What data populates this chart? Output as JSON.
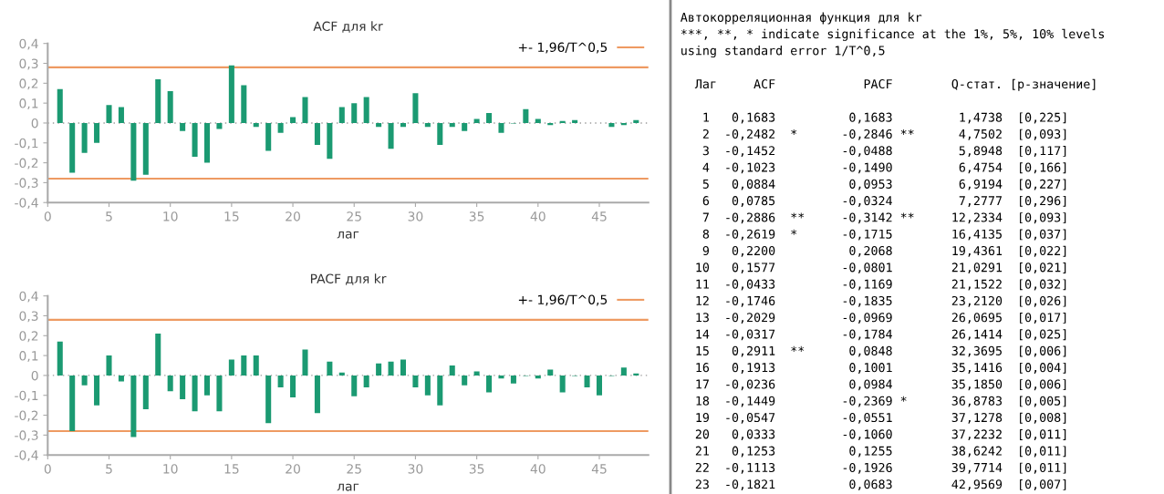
{
  "chart_data": [
    {
      "type": "bar",
      "title": "ACF для kr",
      "xlabel": "лаг",
      "color": "#1b9a72",
      "x": [
        1,
        2,
        3,
        4,
        5,
        6,
        7,
        8,
        9,
        10,
        11,
        12,
        13,
        14,
        15,
        16,
        17,
        18,
        19,
        20,
        21,
        22,
        23,
        24,
        25,
        26,
        27,
        28,
        29,
        30,
        31,
        32,
        33,
        34,
        35,
        36,
        37,
        38,
        39,
        40,
        41,
        42,
        43,
        44,
        45,
        46,
        47,
        48
      ],
      "values": [
        0.17,
        -0.25,
        -0.15,
        -0.1,
        0.09,
        0.08,
        -0.29,
        -0.26,
        0.22,
        0.16,
        -0.04,
        -0.17,
        -0.2,
        -0.03,
        0.29,
        0.19,
        -0.02,
        -0.14,
        -0.05,
        0.03,
        0.13,
        -0.11,
        -0.18,
        0.08,
        0.1,
        0.13,
        -0.02,
        -0.13,
        -0.02,
        0.15,
        -0.02,
        -0.11,
        -0.02,
        -0.04,
        0.02,
        0.05,
        -0.05,
        -0.003,
        0.07,
        0.02,
        -0.01,
        0.01,
        0.015,
        null,
        null,
        -0.02,
        -0.01,
        0.015
      ],
      "xlim": [
        0,
        49
      ],
      "xticks": [
        0,
        5,
        10,
        15,
        20,
        25,
        30,
        35,
        40,
        45
      ],
      "ylim": [
        -0.4,
        0.4
      ],
      "yticks": [
        {
          "value": -0.4,
          "label": "-0,4"
        },
        {
          "value": -0.3,
          "label": "-0,3"
        },
        {
          "value": -0.2,
          "label": "-0,2"
        },
        {
          "value": -0.1,
          "label": "-0,1"
        },
        0,
        {
          "value": 0.1,
          "label": "0,1"
        },
        {
          "value": 0.2,
          "label": "0,2"
        },
        {
          "value": 0.3,
          "label": "0,3"
        },
        {
          "value": 0.4,
          "label": "0,4"
        }
      ],
      "ref_lines": [
        {
          "axis": "y",
          "value": 0.28,
          "label": "+- 1,96/T^0,5",
          "color": "#ee9a62",
          "line_style": "solid"
        },
        {
          "axis": "y",
          "value": -0.28,
          "color": "#ee9a62",
          "line_style": "solid"
        },
        {
          "axis": "y",
          "value": 0,
          "color": "#9a9a9a",
          "line_style": "dotted"
        }
      ],
      "legend": "top right",
      "grid": false
    },
    {
      "type": "bar",
      "title": "PACF для kr",
      "xlabel": "лаг",
      "color": "#1b9a72",
      "x": [
        1,
        2,
        3,
        4,
        5,
        6,
        7,
        8,
        9,
        10,
        11,
        12,
        13,
        14,
        15,
        16,
        17,
        18,
        19,
        20,
        21,
        22,
        23,
        24,
        25,
        26,
        27,
        28,
        29,
        30,
        31,
        32,
        33,
        34,
        35,
        36,
        37,
        38,
        39,
        40,
        41,
        42,
        43,
        44,
        45,
        46,
        47,
        48
      ],
      "values": [
        0.17,
        -0.28,
        -0.05,
        -0.15,
        0.1,
        -0.03,
        -0.31,
        -0.17,
        0.21,
        -0.08,
        -0.12,
        -0.18,
        -0.1,
        -0.18,
        0.08,
        0.1,
        0.1,
        -0.24,
        -0.06,
        -0.11,
        0.13,
        -0.19,
        0.07,
        0.015,
        -0.105,
        -0.06,
        0.06,
        0.07,
        0.08,
        -0.06,
        -0.1,
        -0.15,
        0.05,
        -0.05,
        0.02,
        -0.085,
        -0.015,
        -0.04,
        -0.003,
        -0.015,
        0.03,
        -0.085,
        -0.003,
        -0.06,
        -0.1,
        -0.003,
        0.04,
        0.01
      ],
      "xlim": [
        0,
        49
      ],
      "xticks": [
        0,
        5,
        10,
        15,
        20,
        25,
        30,
        35,
        40,
        45
      ],
      "ylim": [
        -0.4,
        0.4
      ],
      "yticks": [
        {
          "value": -0.4,
          "label": "-0,4"
        },
        {
          "value": -0.3,
          "label": "-0,3"
        },
        {
          "value": -0.2,
          "label": "-0,2"
        },
        {
          "value": -0.1,
          "label": "-0,1"
        },
        0,
        {
          "value": 0.1,
          "label": "0,1"
        },
        {
          "value": 0.2,
          "label": "0,2"
        },
        {
          "value": 0.3,
          "label": "0,3"
        },
        {
          "value": 0.4,
          "label": "0,4"
        }
      ],
      "ref_lines": [
        {
          "axis": "y",
          "value": 0.28,
          "label": "+- 1,96/T^0,5",
          "color": "#ee9a62",
          "line_style": "solid"
        },
        {
          "axis": "y",
          "value": -0.28,
          "color": "#ee9a62",
          "line_style": "solid"
        },
        {
          "axis": "y",
          "value": 0,
          "color": "#9a9a9a",
          "line_style": "dotted"
        }
      ],
      "legend": "top right",
      "grid": false
    },
    {
      "type": "other",
      "title": "Автокорреляционная функция для kr",
      "annotations": [
        "***, **, * indicate significance at the 1%, 5%, 10% levels",
        "using standard error 1/T^0,5",
        "  Лаг     ACF            PACF        Q-стат. [p-значение]",
        "   1   0,1683          0,1683         1,4738  [0,225]",
        "   2  -0,2482  *      -0,2846 **      4,7502  [0,093]",
        "   3  -0,1452         -0,0488         5,8948  [0,117]",
        "   4  -0,1023         -0,1490         6,4754  [0,166]",
        "   5   0,0884          0,0953         6,9194  [0,227]",
        "   6   0,0785         -0,0324         7,2777  [0,296]",
        "   7  -0,2886  **     -0,3142 **     12,2334  [0,093]",
        "   8  -0,2619  *      -0,1715        16,4135  [0,037]",
        "   9   0,2200          0,2068        19,4361  [0,022]",
        "  10   0,1577         -0,0801        21,0291  [0,021]",
        "  11  -0,0433         -0,1169        21,1522  [0,032]",
        "  12  -0,1746         -0,1835        23,2120  [0,026]",
        "  13  -0,2029         -0,0969        26,0695  [0,017]",
        "  14  -0,0317         -0,1784        26,1414  [0,025]",
        "  15   0,2911  **      0,0848        32,3695  [0,006]",
        "  16   0,1913          0,1001        35,1416  [0,004]",
        "  17  -0,0236          0,0984        35,1850  [0,006]",
        "  18  -0,1449         -0,2369 *      36,8783  [0,005]",
        "  19  -0,0547         -0,0551        37,1278  [0,008]",
        "  20   0,0333         -0,1060        37,2232  [0,011]",
        "  21   0,1253          0,1255        38,6242  [0,011]",
        "  22  -0,1113         -0,1926        39,7714  [0,011]",
        "  23  -0,1821          0,0683        42,9569  [0,007]"
      ]
    }
  ]
}
